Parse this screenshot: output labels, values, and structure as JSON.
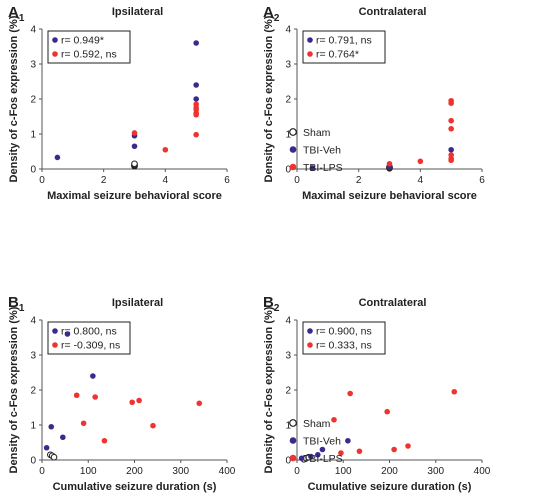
{
  "colors": {
    "sham": "#222222",
    "veh": "#3b2a8c",
    "lps": "#f0332e"
  },
  "legend": [
    {
      "key": "sham",
      "label": "Sham",
      "marker": "open-circle"
    },
    {
      "key": "veh",
      "label": "TBI-Veh",
      "marker": "filled-circle"
    },
    {
      "key": "lps",
      "label": "TBI-LPS",
      "marker": "filled-circle"
    }
  ],
  "ylabel": "Density of c-Fos expression (%)",
  "chart_data": [
    {
      "type": "scatter",
      "panel": "A",
      "panel_sub": "1",
      "title": "Ipsilateral",
      "xlabel": "Maximal seizure behavioral score",
      "ylabel": "Density of c-Fos expression (%)",
      "xlim": [
        0,
        6
      ],
      "ylim": [
        0,
        4
      ],
      "xticks": [
        0,
        2,
        4,
        6
      ],
      "yticks": [
        0,
        1,
        2,
        3,
        4
      ],
      "stats": [
        {
          "key": "veh",
          "text": "r= 0.949*"
        },
        {
          "key": "lps",
          "text": "r= 0.592, ns"
        }
      ],
      "series": [
        {
          "name": "Sham",
          "key": "sham",
          "x": [
            3,
            3,
            3,
            3
          ],
          "y": [
            0.08,
            0.1,
            0.12,
            0.15
          ]
        },
        {
          "name": "TBI-Veh",
          "key": "veh",
          "x": [
            0.5,
            3,
            3,
            5,
            5,
            5
          ],
          "y": [
            0.33,
            0.65,
            0.95,
            3.6,
            2.4,
            2.0
          ]
        },
        {
          "name": "TBI-LPS",
          "key": "lps",
          "x": [
            3,
            4,
            5,
            5,
            5,
            5,
            5,
            5
          ],
          "y": [
            1.03,
            0.55,
            1.85,
            1.75,
            1.7,
            1.6,
            1.55,
            0.98
          ]
        }
      ]
    },
    {
      "type": "scatter",
      "panel": "A",
      "panel_sub": "2",
      "title": "Contralateral",
      "xlabel": "Maximal seizure behavioral score",
      "ylabel": "Density of c-Fos expression (%)",
      "xlim": [
        0,
        6
      ],
      "ylim": [
        0,
        4
      ],
      "xticks": [
        0,
        2,
        4,
        6
      ],
      "yticks": [
        0,
        1,
        2,
        3,
        4
      ],
      "stats": [
        {
          "key": "veh",
          "text": "r= 0.791, ns"
        },
        {
          "key": "lps",
          "text": "r= 0.764*"
        }
      ],
      "series": [
        {
          "name": "Sham",
          "key": "sham",
          "x": [
            3,
            3,
            3
          ],
          "y": [
            0.02,
            0.04,
            0.06
          ]
        },
        {
          "name": "TBI-Veh",
          "key": "veh",
          "x": [
            0.5,
            3,
            3,
            5
          ],
          "y": [
            0.03,
            0.05,
            0.08,
            0.55
          ]
        },
        {
          "name": "TBI-LPS",
          "key": "lps",
          "x": [
            3,
            4,
            5,
            5,
            5,
            5,
            5,
            5,
            5
          ],
          "y": [
            0.15,
            0.22,
            1.95,
            1.88,
            1.38,
            1.15,
            0.4,
            0.3,
            0.25
          ]
        }
      ]
    },
    {
      "type": "scatter",
      "panel": "B",
      "panel_sub": "1",
      "title": "Ipsilateral",
      "xlabel": "Cumulative seizure duration (s)",
      "ylabel": "Density of c-Fos expression (%)",
      "xlim": [
        0,
        400
      ],
      "ylim": [
        0,
        4
      ],
      "xticks": [
        0,
        100,
        200,
        300,
        400
      ],
      "yticks": [
        0,
        1,
        2,
        3,
        4
      ],
      "stats": [
        {
          "key": "veh",
          "text": "r= 0.800, ns"
        },
        {
          "key": "lps",
          "text": "r= -0.309, ns"
        }
      ],
      "series": [
        {
          "name": "Sham",
          "key": "sham",
          "x": [
            18,
            22,
            26
          ],
          "y": [
            0.15,
            0.12,
            0.08
          ]
        },
        {
          "name": "TBI-Veh",
          "key": "veh",
          "x": [
            10,
            20,
            45,
            55,
            110
          ],
          "y": [
            0.35,
            0.95,
            0.65,
            3.6,
            2.4
          ]
        },
        {
          "name": "TBI-LPS",
          "key": "lps",
          "x": [
            75,
            90,
            115,
            135,
            195,
            210,
            240,
            340
          ],
          "y": [
            1.85,
            1.05,
            1.8,
            0.55,
            1.65,
            1.7,
            0.98,
            1.62
          ]
        }
      ]
    },
    {
      "type": "scatter",
      "panel": "B",
      "panel_sub": "2",
      "title": "Contralateral",
      "xlabel": "Cumulative seizure duration (s)",
      "ylabel": "Density of c-Fos expression (%)",
      "xlim": [
        0,
        400
      ],
      "ylim": [
        0,
        4
      ],
      "xticks": [
        0,
        100,
        200,
        300,
        400
      ],
      "yticks": [
        0,
        1,
        2,
        3,
        4
      ],
      "stats": [
        {
          "key": "veh",
          "text": "r= 0.900, ns"
        },
        {
          "key": "lps",
          "text": "r= 0.333, ns"
        }
      ],
      "series": [
        {
          "name": "Sham",
          "key": "sham",
          "x": [
            15,
            20,
            25
          ],
          "y": [
            0.02,
            0.05,
            0.08
          ]
        },
        {
          "name": "TBI-Veh",
          "key": "veh",
          "x": [
            10,
            30,
            45,
            55,
            110
          ],
          "y": [
            0.05,
            0.1,
            0.15,
            0.3,
            0.55
          ]
        },
        {
          "name": "TBI-LPS",
          "key": "lps",
          "x": [
            80,
            95,
            115,
            135,
            195,
            210,
            240,
            340
          ],
          "y": [
            1.15,
            0.2,
            1.9,
            0.25,
            1.38,
            0.3,
            0.4,
            1.95
          ]
        }
      ]
    }
  ]
}
